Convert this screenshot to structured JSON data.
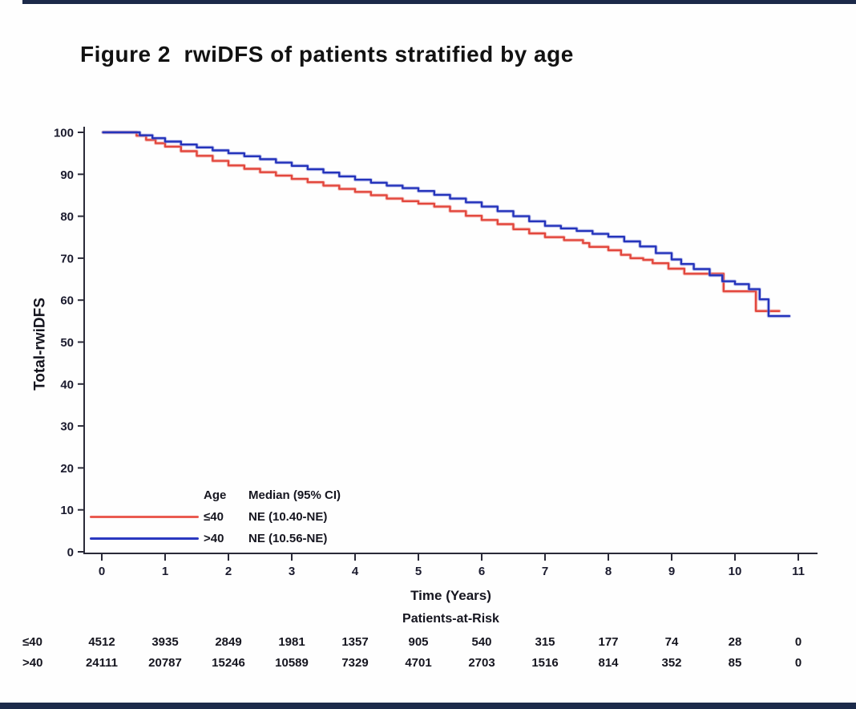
{
  "page": {
    "title": "Figure 2  rwiDFS of patients stratified by age"
  },
  "chart_data": {
    "type": "line",
    "subtype": "kaplan-meier-step",
    "title": "Figure 2  rwiDFS of patients stratified by age",
    "xlabel": "Time (Years)",
    "ylabel": "Total-rwiDFS",
    "xlim": [
      0,
      11
    ],
    "ylim": [
      0,
      100
    ],
    "x_ticks": [
      0,
      1,
      2,
      3,
      4,
      5,
      6,
      7,
      8,
      9,
      10,
      11
    ],
    "y_ticks": [
      0,
      10,
      20,
      30,
      40,
      50,
      60,
      70,
      80,
      90,
      100
    ],
    "grid": false,
    "axis_color": "#2a2a38",
    "legend": {
      "position": "inside-bottom-left",
      "header_age": "Age",
      "header_median": "Median (95% CI)",
      "entries": [
        {
          "label": "≤40",
          "median": "NE (10.40-NE)",
          "color": "#ea5b51"
        },
        {
          "label": ">40",
          "median": "NE (10.56-NE)",
          "color": "#2a38c0"
        }
      ]
    },
    "series": [
      {
        "name": "≤40",
        "color": "#e2473d",
        "halo": "#f4968f",
        "points": [
          [
            0.02,
            100
          ],
          [
            0.45,
            100
          ],
          [
            0.55,
            99.2
          ],
          [
            0.7,
            98.2
          ],
          [
            0.85,
            97.4
          ],
          [
            1,
            96.6
          ],
          [
            1.25,
            95.5
          ],
          [
            1.5,
            94.4
          ],
          [
            1.75,
            93.2
          ],
          [
            2,
            92.1
          ],
          [
            2.25,
            91.3
          ],
          [
            2.5,
            90.5
          ],
          [
            2.75,
            89.7
          ],
          [
            3,
            88.9
          ],
          [
            3.25,
            88.1
          ],
          [
            3.5,
            87.3
          ],
          [
            3.75,
            86.5
          ],
          [
            4,
            85.8
          ],
          [
            4.25,
            85.0
          ],
          [
            4.5,
            84.2
          ],
          [
            4.75,
            83.6
          ],
          [
            5,
            83.0
          ],
          [
            5.25,
            82.3
          ],
          [
            5.5,
            81.2
          ],
          [
            5.75,
            80.1
          ],
          [
            6,
            79.1
          ],
          [
            6.25,
            78.1
          ],
          [
            6.5,
            76.9
          ],
          [
            6.75,
            75.9
          ],
          [
            7,
            75.0
          ],
          [
            7.3,
            74.3
          ],
          [
            7.6,
            73.6
          ],
          [
            7.7,
            72.7
          ],
          [
            8,
            71.9
          ],
          [
            8.2,
            70.8
          ],
          [
            8.35,
            70.0
          ],
          [
            8.55,
            69.6
          ],
          [
            8.7,
            68.8
          ],
          [
            8.95,
            67.5
          ],
          [
            9.2,
            66.3
          ],
          [
            9.82,
            62.1
          ],
          [
            10.33,
            57.4
          ],
          [
            10.7,
            57.4
          ]
        ]
      },
      {
        "name": ">40",
        "color": "#2433bb",
        "halo": "#8d96e2",
        "points": [
          [
            0.02,
            100
          ],
          [
            0.45,
            100
          ],
          [
            0.6,
            99.3
          ],
          [
            0.8,
            98.6
          ],
          [
            1,
            97.8
          ],
          [
            1.25,
            97.1
          ],
          [
            1.5,
            96.4
          ],
          [
            1.75,
            95.7
          ],
          [
            2,
            95.0
          ],
          [
            2.25,
            94.3
          ],
          [
            2.5,
            93.6
          ],
          [
            2.75,
            92.8
          ],
          [
            3,
            92.0
          ],
          [
            3.25,
            91.2
          ],
          [
            3.5,
            90.4
          ],
          [
            3.75,
            89.5
          ],
          [
            4,
            88.7
          ],
          [
            4.25,
            88.0
          ],
          [
            4.5,
            87.3
          ],
          [
            4.75,
            86.7
          ],
          [
            5,
            86.0
          ],
          [
            5.25,
            85.1
          ],
          [
            5.5,
            84.2
          ],
          [
            5.75,
            83.3
          ],
          [
            6,
            82.3
          ],
          [
            6.25,
            81.2
          ],
          [
            6.5,
            80.0
          ],
          [
            6.75,
            78.8
          ],
          [
            7,
            77.7
          ],
          [
            7.25,
            77.1
          ],
          [
            7.5,
            76.5
          ],
          [
            7.75,
            75.8
          ],
          [
            8,
            75.1
          ],
          [
            8.25,
            74.0
          ],
          [
            8.5,
            72.8
          ],
          [
            8.75,
            71.2
          ],
          [
            9,
            69.7
          ],
          [
            9.15,
            68.6
          ],
          [
            9.35,
            67.4
          ],
          [
            9.6,
            65.9
          ],
          [
            9.8,
            64.5
          ],
          [
            10,
            63.8
          ],
          [
            10.22,
            62.6
          ],
          [
            10.39,
            60.2
          ],
          [
            10.53,
            56.2
          ],
          [
            10.86,
            56.2
          ]
        ]
      }
    ],
    "risk_table": {
      "title": "Patients-at-Risk",
      "rows": [
        {
          "label": "≤40",
          "values": [
            4512,
            3935,
            2849,
            1981,
            1357,
            905,
            540,
            315,
            177,
            74,
            28,
            0
          ]
        },
        {
          "label": ">40",
          "values": [
            24111,
            20787,
            15246,
            10589,
            7329,
            4701,
            2703,
            1516,
            814,
            352,
            85,
            0
          ]
        }
      ]
    }
  }
}
